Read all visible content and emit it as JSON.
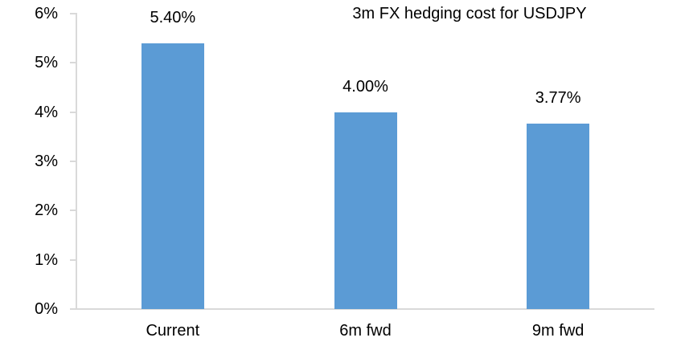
{
  "chart_data": {
    "type": "bar",
    "title": "3m FX hedging cost for USDJPY",
    "categories": [
      "Current",
      "6m fwd",
      "9m fwd"
    ],
    "values": [
      5.4,
      4.0,
      3.77
    ],
    "data_labels": [
      "5.40%",
      "4.00%",
      "3.77%"
    ],
    "xlabel": "",
    "ylabel": "",
    "ylim": [
      0,
      6
    ],
    "ytick_step": 1,
    "ytick_labels": [
      "0%",
      "1%",
      "2%",
      "3%",
      "4%",
      "5%",
      "6%"
    ],
    "grid": false,
    "legend": "none",
    "bar_color": "#5b9bd5",
    "axis_color": "#d9d9d9",
    "text_color": "#000000"
  }
}
